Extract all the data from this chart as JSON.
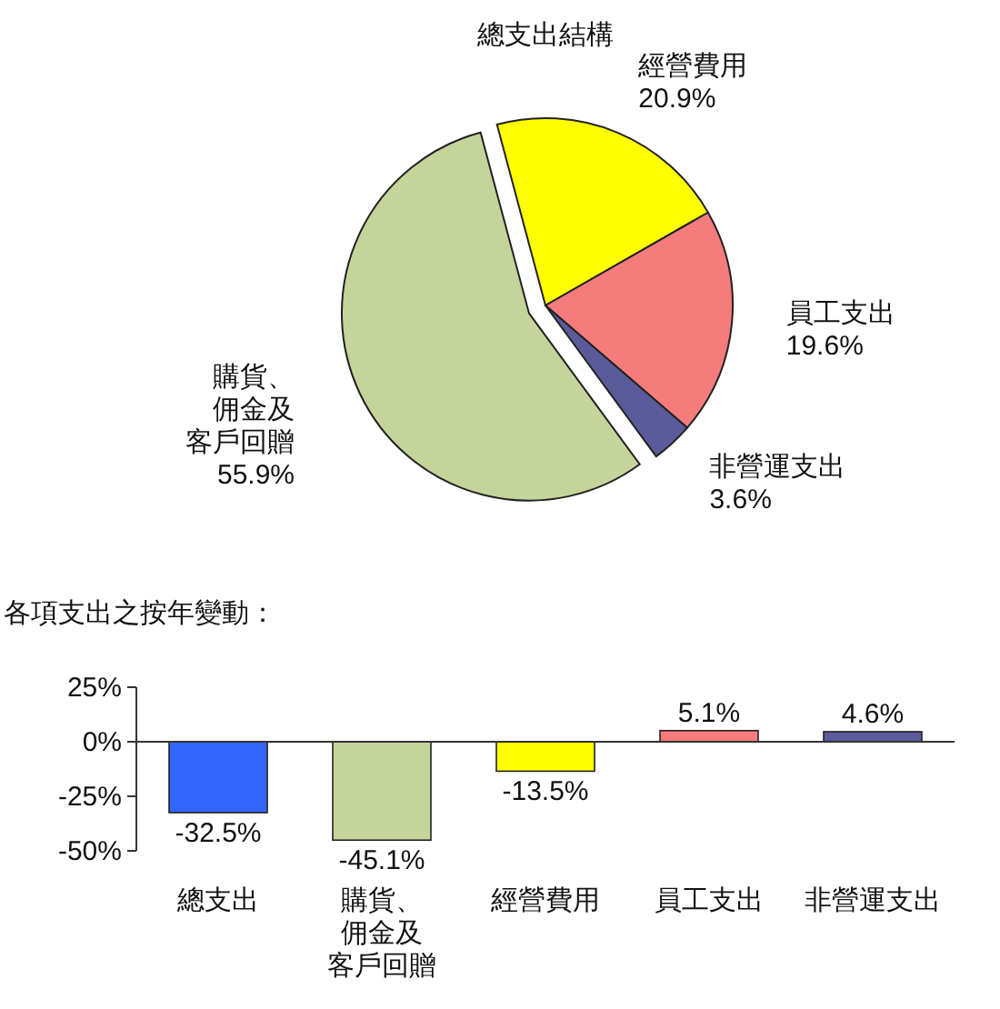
{
  "chart_data": [
    {
      "type": "pie",
      "title": "總支出結構",
      "categories": [
        "經營費用",
        "員工支出",
        "非營運支出",
        "購貨、佣金及客戶回贈"
      ],
      "values": [
        20.9,
        19.6,
        3.6,
        55.9
      ],
      "colors": [
        "#ffff00",
        "#f47c7c",
        "#5b5b9b",
        "#c5d49a"
      ],
      "value_labels": [
        "20.9%",
        "19.6%",
        "3.6%",
        "55.9%"
      ]
    },
    {
      "type": "bar",
      "title": "各項支出之按年變動：",
      "categories": [
        "總支出",
        "購貨、佣金及客戶回贈",
        "經營費用",
        "員工支出",
        "非營運支出"
      ],
      "values": [
        -32.5,
        -45.1,
        -13.5,
        5.1,
        4.6
      ],
      "colors": [
        "#3366ff",
        "#c5d49a",
        "#ffff00",
        "#f47c7c",
        "#5b5b9b"
      ],
      "value_labels": [
        "-32.5%",
        "-45.1%",
        "-13.5%",
        "5.1%",
        "4.6%"
      ],
      "ylim": [
        -50,
        25
      ],
      "yticks": [
        {
          "value": 25,
          "label": "25%"
        },
        {
          "value": 0,
          "label": "0%"
        },
        {
          "value": -25,
          "label": "-25%"
        },
        {
          "value": -50,
          "label": "-50%"
        }
      ]
    }
  ]
}
